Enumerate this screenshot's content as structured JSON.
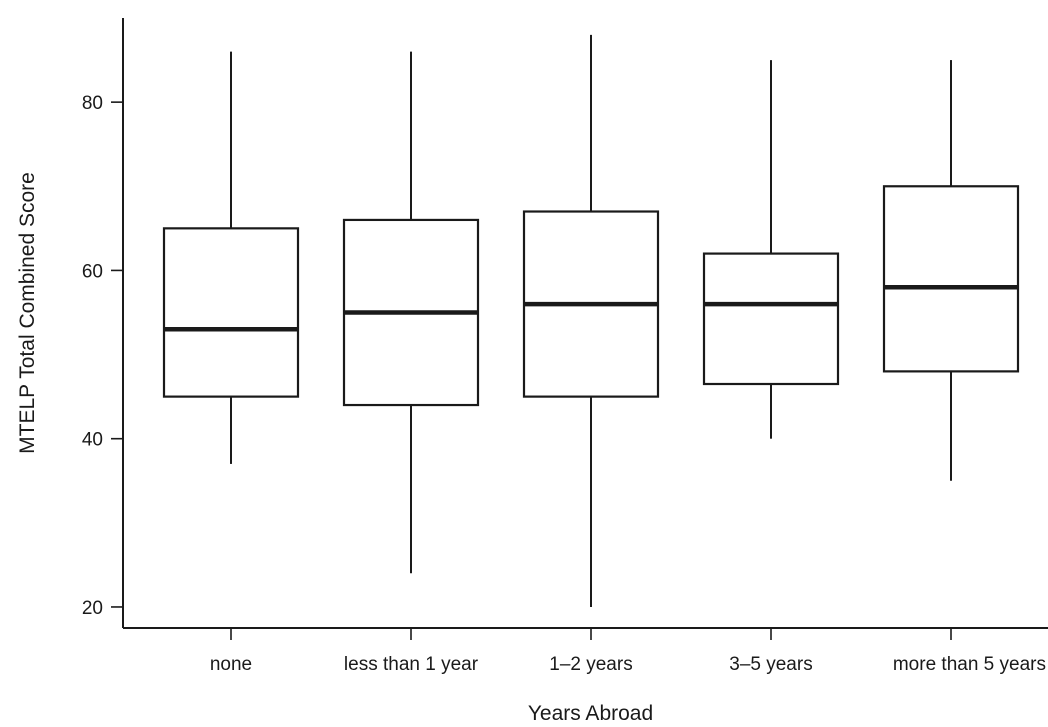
{
  "chart_data": {
    "type": "box",
    "xlabel": "Years Abroad",
    "ylabel": "MTELP Total Combined Score",
    "ylim": [
      17.5,
      90
    ],
    "yticks": [
      20,
      40,
      60,
      80
    ],
    "categories": [
      "none",
      "less than 1 year",
      "1–2 years",
      "3–5 years",
      "more than 5 years"
    ],
    "boxes": [
      {
        "category": "none",
        "min": 37,
        "q1": 45,
        "median": 53,
        "q3": 65,
        "max": 86
      },
      {
        "category": "less than 1 year",
        "min": 24,
        "q1": 44,
        "median": 55,
        "q3": 66,
        "max": 86
      },
      {
        "category": "1–2 years",
        "min": 20,
        "q1": 45,
        "median": 56,
        "q3": 67,
        "max": 88
      },
      {
        "category": "3–5 years",
        "min": 40,
        "q1": 46.5,
        "median": 56,
        "q3": 62,
        "max": 85
      },
      {
        "category": "more than 5 years",
        "min": 35,
        "q1": 48,
        "median": 58,
        "q3": 70,
        "max": 85
      }
    ],
    "grid": false,
    "legend": "none"
  }
}
